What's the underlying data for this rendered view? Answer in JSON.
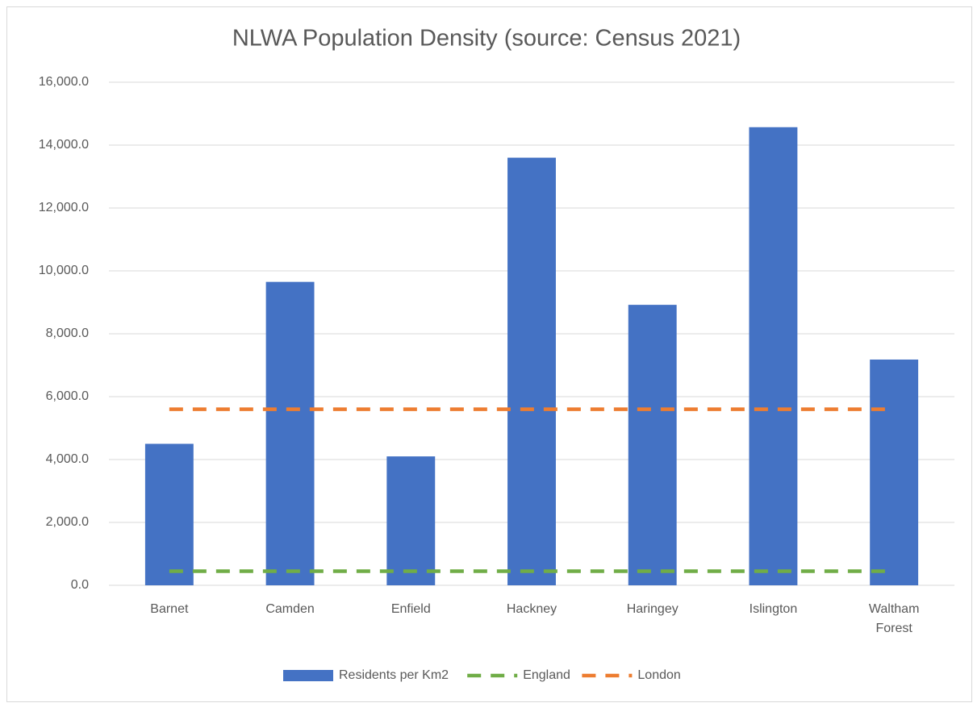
{
  "chart_data": {
    "type": "bar",
    "title": "NLWA Population Density (source: Census 2021)",
    "categories": [
      "Barnet",
      "Camden",
      "Enfield",
      "Hackney",
      "Haringey",
      "Islington",
      "Waltham Forest"
    ],
    "series": [
      {
        "name": "Residents per Km2",
        "type": "bar",
        "color": "#4472c4",
        "values": [
          4500,
          9650,
          4100,
          13600,
          8920,
          14570,
          7180
        ]
      },
      {
        "name": "England",
        "type": "line",
        "color": "#70ad47",
        "dashed": true,
        "values": [
          450,
          450,
          450,
          450,
          450,
          450,
          450
        ]
      },
      {
        "name": "London",
        "type": "line",
        "color": "#ed7d31",
        "dashed": true,
        "values": [
          5600,
          5600,
          5600,
          5600,
          5600,
          5600,
          5600
        ]
      }
    ],
    "ylim": [
      0,
      16000
    ],
    "yticks": [
      {
        "value": 0,
        "label": "0.0"
      },
      {
        "value": 2000,
        "label": "2,000.0"
      },
      {
        "value": 4000,
        "label": "4,000.0"
      },
      {
        "value": 6000,
        "label": "6,000.0"
      },
      {
        "value": 8000,
        "label": "8,000.0"
      },
      {
        "value": 10000,
        "label": "10,000.0"
      },
      {
        "value": 12000,
        "label": "12,000.0"
      },
      {
        "value": 14000,
        "label": "14,000.0"
      },
      {
        "value": 16000,
        "label": "16,000.0"
      }
    ],
    "grid": true,
    "legend": "bottom"
  }
}
